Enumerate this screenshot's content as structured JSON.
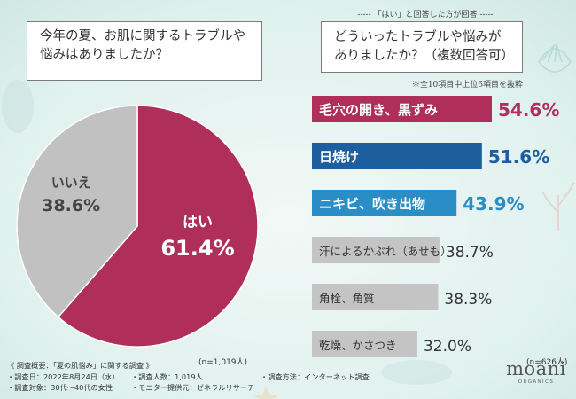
{
  "pie_question": [
    "今年の夏、お肌に関するトラブルや",
    "悩みはありましたか？"
  ],
  "bar_header_note": "----- 「はい」と回答した方が回答 -----",
  "bar_question": [
    "どういったトラブルや悩みが",
    "ありましたか？（複数回答可）"
  ],
  "bar_subset_note": "※全10項目中上位6項目を抜粋",
  "pie_n": "(n=1,019人)",
  "bar_n": "(n=626人)",
  "survey": {
    "title": "《 調査概要：「夏の肌悩み」に関する調査 》",
    "date": "・調査日：2022年8月24日（水）",
    "count": "・調査人数：1,019人",
    "method": "・調査方法：インターネット調査",
    "target": "・調査対象：30代～40代の女性",
    "provider": "・モニター提供元：ゼネラルリサーチ"
  },
  "logo": {
    "main": "moani",
    "sub": "ORGANICS"
  },
  "chart_data": [
    {
      "type": "pie",
      "title": "今年の夏、お肌に関するトラブルや悩みはありましたか？",
      "slices": [
        {
          "label": "はい",
          "value": 61.4,
          "value_label": "61.4%",
          "color": "#b02e5a"
        },
        {
          "label": "いいえ",
          "value": 38.6,
          "value_label": "38.6%",
          "color": "#c1c1c1"
        }
      ]
    },
    {
      "type": "bar",
      "orientation": "horizontal",
      "title": "どういったトラブルや悩みがありましたか？（複数回答可）",
      "xlim": [
        0,
        100
      ],
      "bars": [
        {
          "label": "毛穴の開き、黒ずみ",
          "value": 54.6,
          "value_label": "54.6%",
          "color": "#b02e5a",
          "label_color": "#ffffff",
          "value_color": "#b02e5a"
        },
        {
          "label": "日焼け",
          "value": 51.6,
          "value_label": "51.6%",
          "color": "#1d5f9e",
          "label_color": "#ffffff",
          "value_color": "#1d5f9e"
        },
        {
          "label": "ニキビ、吹き出物",
          "value": 43.9,
          "value_label": "43.9%",
          "color": "#2a8dc6",
          "label_color": "#ffffff",
          "value_color": "#2a8dc6"
        },
        {
          "label": "汗によるかぶれ（あせも）",
          "value": 38.7,
          "value_label": "38.7%",
          "color": "#c4c4c4",
          "label_color": "#333333",
          "value_color": "#333333"
        },
        {
          "label": "角栓、角質",
          "value": 38.3,
          "value_label": "38.3%",
          "color": "#c4c4c4",
          "label_color": "#333333",
          "value_color": "#333333"
        },
        {
          "label": "乾燥、かさつき",
          "value": 32.0,
          "value_label": "32.0%",
          "color": "#c4c4c4",
          "label_color": "#333333",
          "value_color": "#333333"
        }
      ]
    }
  ]
}
